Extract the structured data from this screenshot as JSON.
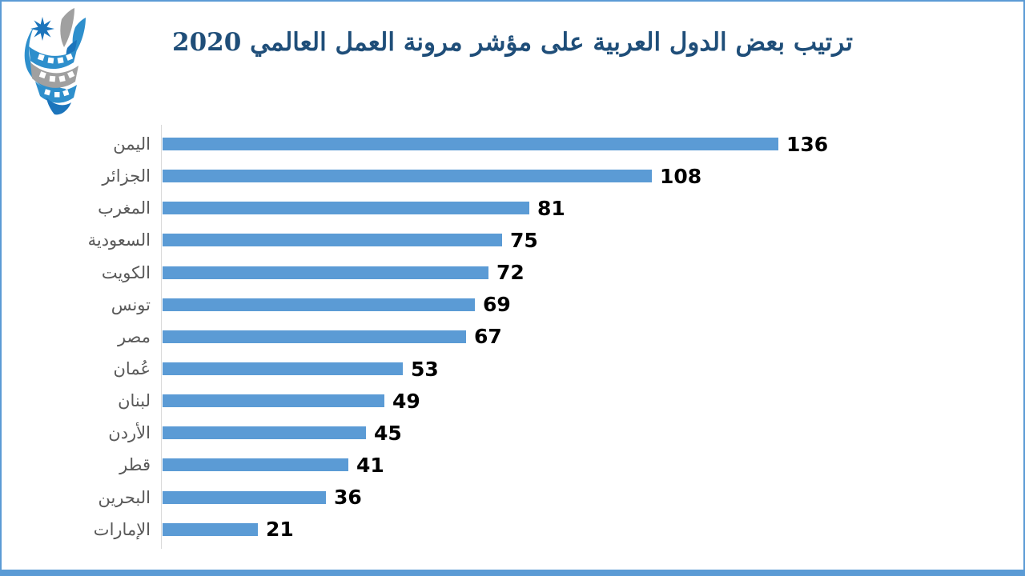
{
  "slide": {
    "title": "ترتيب بعض الدول العربية على مؤشر مرونة العمل العالمي 2020"
  },
  "logo": {
    "name": "twisted-ribbon-star-emblem",
    "star_color": "#1C75BC",
    "ribbon_blue": "#2E8FCC",
    "ribbon_gray": "#A0A0A0"
  },
  "colors": {
    "bar": "#5B9BD5",
    "frame": "#5B9BD5",
    "title_text": "#1F4E79",
    "category_text": "#595959",
    "value_text": "#000000",
    "axis_line": "#D9D9D9",
    "background": "#FFFFFF"
  },
  "chart_data": {
    "type": "bar",
    "orientation": "horizontal",
    "title": "ترتيب بعض الدول العربية على مؤشر مرونة العمل العالمي 2020",
    "categories": [
      "اليمن",
      "الجزائر",
      "المغرب",
      "السعودية",
      "الكويت",
      "تونس",
      "مصر",
      "عُمان",
      "لبنان",
      "الأردن",
      "قطر",
      "البحرين",
      "الإمارات"
    ],
    "values": [
      136,
      108,
      81,
      75,
      72,
      69,
      67,
      53,
      49,
      45,
      41,
      36,
      21
    ],
    "xlabel": "",
    "ylabel": "",
    "xlim": [
      0,
      150
    ],
    "grid": false,
    "legend": false,
    "value_labels": "end-of-bar",
    "sort": "descending"
  }
}
